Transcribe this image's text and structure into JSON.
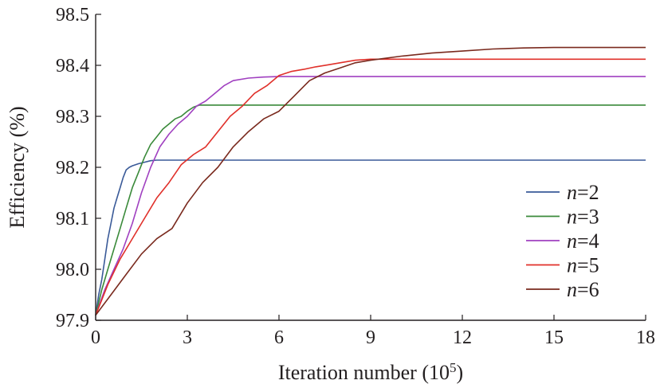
{
  "chart_data": {
    "type": "line",
    "title": "",
    "xlabel": "Iteration number (10",
    "xlabel_sup": "5",
    "xlabel_close": ")",
    "ylabel": "Efficiency (%)",
    "xlim": [
      0,
      18
    ],
    "ylim": [
      97.9,
      98.5
    ],
    "xticks": [
      0,
      3,
      6,
      9,
      12,
      15,
      18
    ],
    "xtick_labels": [
      "0",
      "3",
      "6",
      "9",
      "12",
      "15",
      "18"
    ],
    "yticks": [
      97.9,
      98.0,
      98.1,
      98.2,
      98.3,
      98.4,
      98.5
    ],
    "ytick_labels": [
      "97.9",
      "98.0",
      "98.1",
      "98.2",
      "98.3",
      "98.4",
      "98.5"
    ],
    "grid": false,
    "legend_position": "lower-right",
    "series": [
      {
        "name": "n=2",
        "legend_var": "n",
        "legend_rest": "=2",
        "color": "#3a5a98",
        "x": [
          0,
          0.1,
          0.2,
          0.3,
          0.4,
          0.5,
          0.6,
          0.7,
          0.8,
          0.9,
          1.0,
          1.1,
          1.2,
          1.4,
          1.6,
          1.8,
          2.0,
          18
        ],
        "y": [
          97.91,
          97.95,
          97.98,
          98.02,
          98.06,
          98.09,
          98.12,
          98.14,
          98.16,
          98.18,
          98.195,
          98.2,
          98.203,
          98.207,
          98.21,
          98.213,
          98.214,
          98.214
        ]
      },
      {
        "name": "n=3",
        "legend_var": "n",
        "legend_rest": "=3",
        "color": "#3a8a3a",
        "x": [
          0,
          0.2,
          0.4,
          0.6,
          0.8,
          1.0,
          1.2,
          1.4,
          1.6,
          1.8,
          2.0,
          2.2,
          2.4,
          2.6,
          2.8,
          3.0,
          3.2,
          3.4,
          18
        ],
        "y": [
          97.91,
          97.96,
          98.0,
          98.04,
          98.08,
          98.12,
          98.16,
          98.19,
          98.22,
          98.245,
          98.26,
          98.275,
          98.285,
          98.295,
          98.3,
          98.31,
          98.318,
          98.322,
          98.322
        ]
      },
      {
        "name": "n=4",
        "legend_var": "n",
        "legend_rest": "=4",
        "color": "#a040c0",
        "x": [
          0,
          0.3,
          0.6,
          0.9,
          1.2,
          1.5,
          1.8,
          2.1,
          2.4,
          2.7,
          3.0,
          3.3,
          3.6,
          3.9,
          4.2,
          4.5,
          5.0,
          5.5,
          6.0,
          18
        ],
        "y": [
          97.91,
          97.96,
          98.0,
          98.04,
          98.09,
          98.15,
          98.2,
          98.24,
          98.265,
          98.285,
          98.3,
          98.32,
          98.33,
          98.345,
          98.36,
          98.37,
          98.375,
          98.377,
          98.378,
          98.378
        ]
      },
      {
        "name": "n=5",
        "legend_var": "n",
        "legend_rest": "=5",
        "color": "#e0302a",
        "x": [
          0,
          0.4,
          0.8,
          1.2,
          1.6,
          2.0,
          2.4,
          2.8,
          3.2,
          3.6,
          4.0,
          4.4,
          4.8,
          5.2,
          5.6,
          6.0,
          6.4,
          6.8,
          7.2,
          7.6,
          8.0,
          8.5,
          9.0,
          18
        ],
        "y": [
          97.91,
          97.97,
          98.02,
          98.06,
          98.1,
          98.14,
          98.17,
          98.205,
          98.225,
          98.24,
          98.27,
          98.3,
          98.32,
          98.345,
          98.36,
          98.38,
          98.388,
          98.392,
          98.397,
          98.401,
          98.405,
          98.41,
          98.412,
          98.412
        ]
      },
      {
        "name": "n=6",
        "legend_var": "n",
        "legend_rest": "=6",
        "color": "#7a2a1e",
        "x": [
          0,
          0.5,
          1.0,
          1.5,
          2.0,
          2.5,
          3.0,
          3.5,
          4.0,
          4.5,
          5.0,
          5.5,
          6.0,
          6.5,
          7.0,
          7.5,
          8.0,
          8.5,
          9.0,
          10.0,
          11.0,
          12.0,
          13.0,
          14.0,
          15.0,
          18
        ],
        "y": [
          97.91,
          97.95,
          97.99,
          98.03,
          98.06,
          98.08,
          98.13,
          98.17,
          98.2,
          98.24,
          98.27,
          98.295,
          98.31,
          98.34,
          98.37,
          98.385,
          98.395,
          98.405,
          98.41,
          98.418,
          98.424,
          98.428,
          98.432,
          98.434,
          98.435,
          98.435
        ]
      }
    ]
  }
}
